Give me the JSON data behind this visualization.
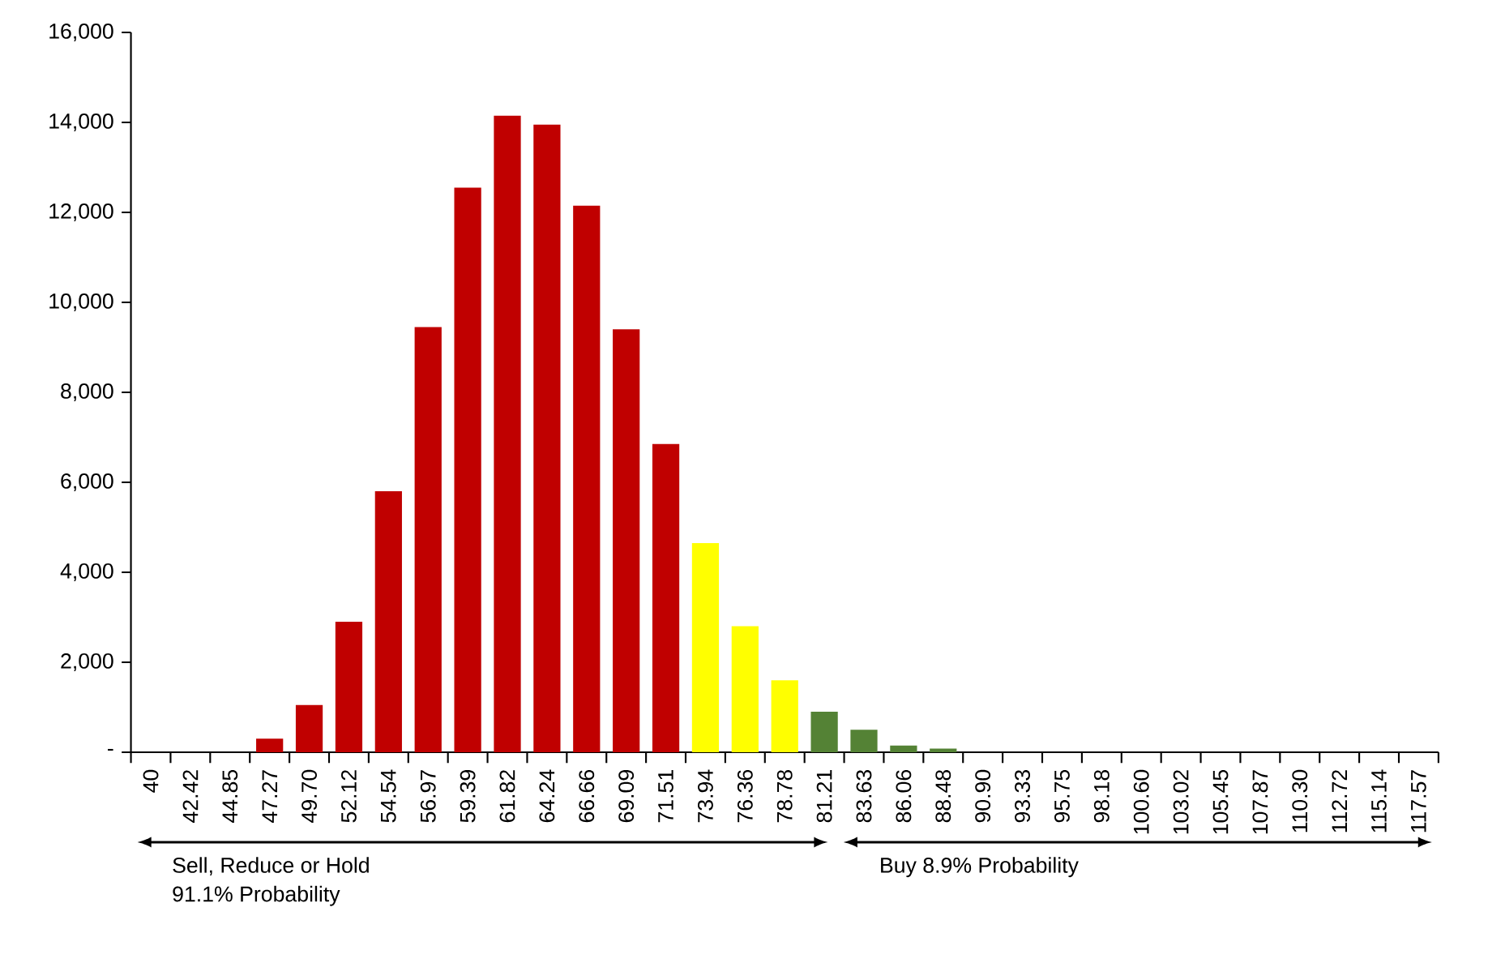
{
  "chart_data": {
    "type": "bar",
    "categories": [
      "40",
      "42.42",
      "44.85",
      "47.27",
      "49.70",
      "52.12",
      "54.54",
      "56.97",
      "59.39",
      "61.82",
      "64.24",
      "66.66",
      "69.09",
      "71.51",
      "73.94",
      "76.36",
      "78.78",
      "81.21",
      "83.63",
      "86.06",
      "88.48",
      "90.90",
      "93.33",
      "95.75",
      "98.18",
      "100.60",
      "103.02",
      "105.45",
      "107.87",
      "110.30",
      "112.72",
      "115.14",
      "117.57"
    ],
    "values": [
      0,
      0,
      0,
      300,
      1050,
      2900,
      5800,
      9450,
      12550,
      14150,
      13950,
      12150,
      9400,
      6850,
      4650,
      2800,
      1600,
      900,
      500,
      150,
      80,
      0,
      0,
      0,
      0,
      0,
      0,
      0,
      0,
      0,
      0,
      0,
      0
    ],
    "colors": [
      "#c00000",
      "#c00000",
      "#c00000",
      "#c00000",
      "#c00000",
      "#c00000",
      "#c00000",
      "#c00000",
      "#c00000",
      "#c00000",
      "#c00000",
      "#c00000",
      "#c00000",
      "#c00000",
      "#ffff00",
      "#ffff00",
      "#ffff00",
      "#548235",
      "#548235",
      "#548235",
      "#548235",
      "#548235",
      "#548235",
      "#548235",
      "#548235",
      "#548235",
      "#548235",
      "#548235",
      "#548235",
      "#548235",
      "#548235",
      "#548235",
      "#548235"
    ],
    "ylim": [
      0,
      16000
    ],
    "yticks": [
      {
        "value": 0,
        "label": "-"
      },
      {
        "value": 2000,
        "label": "2,000"
      },
      {
        "value": 4000,
        "label": "4,000"
      },
      {
        "value": 6000,
        "label": "6,000"
      },
      {
        "value": 8000,
        "label": "8,000"
      },
      {
        "value": 10000,
        "label": "10,000"
      },
      {
        "value": 12000,
        "label": "12,000"
      },
      {
        "value": 14000,
        "label": "14,000"
      },
      {
        "value": 16000,
        "label": "16,000"
      }
    ],
    "grid": false,
    "annotations": [
      "Sell, Reduce or Hold",
      "91.1% Probability",
      "Buy 8.9% Probability"
    ]
  }
}
